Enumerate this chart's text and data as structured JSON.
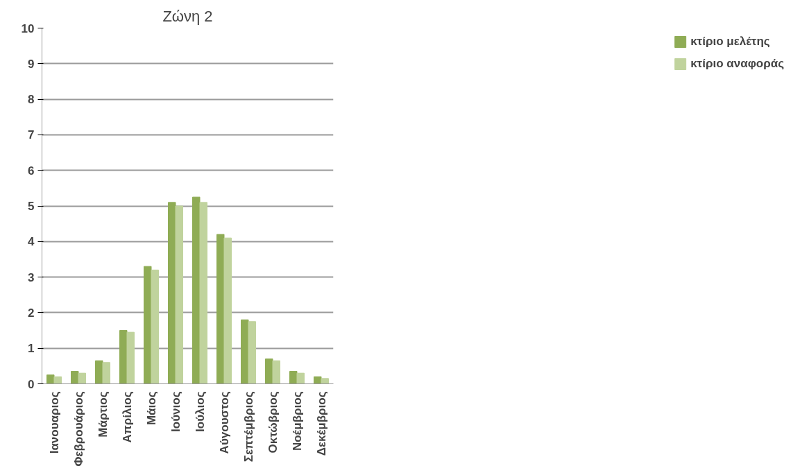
{
  "chart_data": {
    "type": "bar",
    "title": "Ζώνη 2",
    "categories": [
      "Ιανουαριος",
      "Φεβρουάριος",
      "Μάρτιος",
      "Απρίλιος",
      "Μάιος",
      "Ιούνιος",
      "Ιούλιος",
      "Αύγουστος",
      "Σεπτέμβριος",
      "Οκτώβριος",
      "Νοέμβριος",
      "Δεκέμβριος"
    ],
    "series": [
      {
        "name": "κτίριο μελέτης",
        "color": "#8fac55",
        "values": [
          0.25,
          0.35,
          0.65,
          1.5,
          3.3,
          5.1,
          5.25,
          4.2,
          1.8,
          0.7,
          0.35,
          0.2
        ]
      },
      {
        "name": "κτίριο αναφοράς",
        "color": "#c0d39d",
        "values": [
          0.2,
          0.3,
          0.6,
          1.45,
          3.2,
          5.0,
          5.1,
          4.1,
          1.75,
          0.65,
          0.3,
          0.15
        ]
      }
    ],
    "ylim": [
      0,
      10
    ],
    "yticks": [
      0,
      1,
      2,
      3,
      4,
      5,
      6,
      7,
      8,
      9,
      10
    ],
    "grid": "y",
    "legend": "right"
  }
}
